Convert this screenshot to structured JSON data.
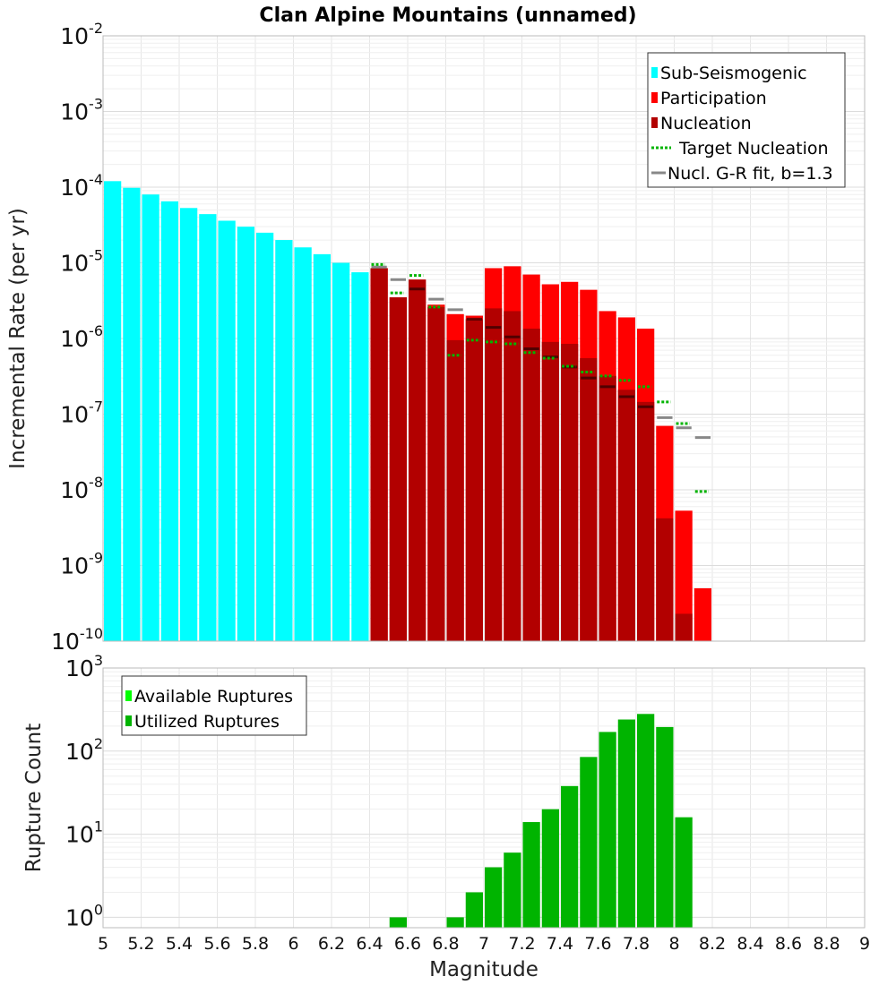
{
  "chart_data": [
    {
      "type": "bar",
      "title": "Clan Alpine Mountains (unnamed)",
      "xlabel": "",
      "ylabel": "Incremental Rate (per yr)",
      "xlim": [
        5,
        9
      ],
      "ylim": [
        1e-10,
        0.01
      ],
      "yscale": "log",
      "grid": true,
      "legend_position": "top-right",
      "bin_width": 0.1,
      "y_ticks": [
        {
          "base": "10",
          "exp": "-10"
        },
        {
          "base": "10",
          "exp": "-9"
        },
        {
          "base": "10",
          "exp": "-8"
        },
        {
          "base": "10",
          "exp": "-7"
        },
        {
          "base": "10",
          "exp": "-6"
        },
        {
          "base": "10",
          "exp": "-5"
        },
        {
          "base": "10",
          "exp": "-4"
        },
        {
          "base": "10",
          "exp": "-3"
        },
        {
          "base": "10",
          "exp": "-2"
        }
      ],
      "legend": [
        {
          "label": "Sub-Seismogenic",
          "color": "#00ffff",
          "style": "bar"
        },
        {
          "label": "Participation",
          "color": "#ff0000",
          "style": "bar"
        },
        {
          "label": "Nucleation",
          "color": "#b20000",
          "style": "bar"
        },
        {
          "label": "Target Nucleation",
          "color": "#00b400",
          "style": "dotted"
        },
        {
          "label": "Nucl. G-R fit, b=1.3",
          "color": "#888888",
          "style": "line"
        }
      ],
      "series": [
        {
          "name": "Sub-Seismogenic",
          "color": "#00ffff",
          "x": [
            5.05,
            5.15,
            5.25,
            5.35,
            5.45,
            5.55,
            5.65,
            5.75,
            5.85,
            5.95,
            6.05,
            6.15,
            6.25,
            6.35
          ],
          "values": [
            0.00012,
            9.8e-05,
            8e-05,
            6.5e-05,
            5.3e-05,
            4.4e-05,
            3.6e-05,
            3e-05,
            2.5e-05,
            2e-05,
            1.6e-05,
            1.3e-05,
            1e-05,
            7.5e-06
          ]
        },
        {
          "name": "Participation",
          "color": "#ff0000",
          "x": [
            6.45,
            6.55,
            6.65,
            6.75,
            6.85,
            6.95,
            7.05,
            7.15,
            7.25,
            7.35,
            7.45,
            7.55,
            7.65,
            7.75,
            7.85,
            7.95,
            8.05,
            8.15
          ],
          "values": [
            8.5e-06,
            3.5e-06,
            6e-06,
            2.8e-06,
            2.1e-06,
            2e-06,
            8.5e-06,
            9e-06,
            7e-06,
            5.2e-06,
            5.6e-06,
            4.4e-06,
            2.3e-06,
            1.9e-06,
            1.35e-06,
            7e-08,
            5.3e-09,
            5e-10
          ]
        },
        {
          "name": "Nucleation",
          "color": "#b20000",
          "x": [
            6.45,
            6.55,
            6.65,
            6.75,
            6.85,
            6.95,
            7.05,
            7.15,
            7.25,
            7.35,
            7.45,
            7.55,
            7.65,
            7.75,
            7.85,
            7.95,
            8.05
          ],
          "values": [
            8.5e-06,
            3.5e-06,
            6e-06,
            2.6e-06,
            9.5e-07,
            1.8e-06,
            2.5e-06,
            2.3e-06,
            1.35e-06,
            9e-07,
            8.5e-07,
            5.5e-07,
            3.2e-07,
            2.1e-07,
            1.45e-07,
            4.2e-09,
            2.3e-10
          ]
        },
        {
          "name": "Target Nucleation",
          "color": "#00b400",
          "x": [
            6.45,
            6.55,
            6.65,
            6.75,
            6.85,
            6.95,
            7.05,
            7.15,
            7.25,
            7.35,
            7.45,
            7.55,
            7.65,
            7.75,
            7.85,
            7.95,
            8.05,
            8.15
          ],
          "values": [
            9.5e-06,
            4e-06,
            6.8e-06,
            2.6e-06,
            6e-07,
            9.5e-07,
            9e-07,
            8.5e-07,
            6.5e-07,
            5.5e-07,
            4.3e-07,
            3.6e-07,
            3.2e-07,
            2.8e-07,
            2.3e-07,
            1.45e-07,
            7.5e-08,
            9.5e-09
          ]
        },
        {
          "name": "Nucl. G-R fit, b=1.3",
          "color": "#888888",
          "x": [
            6.45,
            6.55,
            6.65,
            6.75,
            6.85,
            6.95,
            7.05,
            7.15,
            7.25,
            7.35,
            7.45,
            7.55,
            7.65,
            7.75,
            7.85,
            7.95,
            8.05,
            8.15
          ],
          "values": [
            8.8e-06,
            6e-06,
            4.5e-06,
            3.3e-06,
            2.4e-06,
            1.8e-06,
            1.4e-06,
            1.05e-06,
            7.3e-07,
            5.7e-07,
            4.2e-07,
            3e-07,
            2.3e-07,
            1.7e-07,
            1.25e-07,
            9e-08,
            6.6e-08,
            4.9e-08
          ]
        }
      ]
    },
    {
      "type": "bar",
      "title": "",
      "xlabel": "Magnitude",
      "ylabel": "Rupture Count",
      "xlim": [
        5,
        9
      ],
      "ylim": [
        0.75,
        1000
      ],
      "yscale": "log",
      "grid": true,
      "legend_position": "top-left",
      "bin_width": 0.1,
      "x_ticks": [
        "5",
        "5.2",
        "5.4",
        "5.6",
        "5.8",
        "6",
        "6.2",
        "6.4",
        "6.6",
        "6.8",
        "7",
        "7.2",
        "7.4",
        "7.6",
        "7.8",
        "8",
        "8.2",
        "8.4",
        "8.6",
        "8.8",
        "9"
      ],
      "y_ticks": [
        {
          "base": "10",
          "exp": "0"
        },
        {
          "base": "10",
          "exp": "1"
        },
        {
          "base": "10",
          "exp": "2"
        },
        {
          "base": "10",
          "exp": "3"
        }
      ],
      "legend": [
        {
          "label": "Available Ruptures",
          "color": "#00ff00",
          "style": "bar"
        },
        {
          "label": "Utilized Ruptures",
          "color": "#00b400",
          "style": "bar"
        }
      ],
      "series": [
        {
          "name": "Utilized Ruptures",
          "color": "#00b400",
          "x": [
            6.55,
            6.85,
            6.95,
            7.05,
            7.15,
            7.25,
            7.35,
            7.45,
            7.55,
            7.65,
            7.75,
            7.85,
            7.95,
            8.05
          ],
          "values": [
            1,
            1,
            2,
            4,
            6,
            14,
            20,
            38,
            85,
            170,
            240,
            280,
            195,
            16
          ]
        }
      ]
    }
  ]
}
